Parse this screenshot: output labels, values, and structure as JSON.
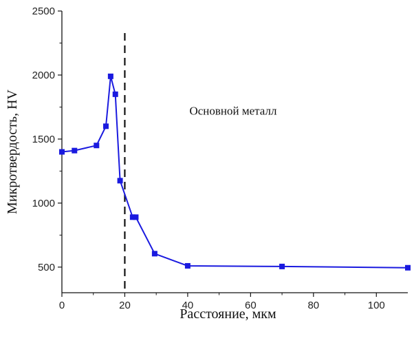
{
  "chart_data": {
    "type": "line",
    "title": "",
    "xlabel": "Расстояние, мкм",
    "ylabel": "Микротвердость, HV",
    "xlim": [
      0,
      110
    ],
    "ylim": [
      300,
      2500
    ],
    "x_ticks": [
      0,
      20,
      40,
      60,
      80,
      100
    ],
    "y_ticks": [
      500,
      1000,
      1500,
      2000,
      2500
    ],
    "grid": false,
    "legend": "none",
    "series": [
      {
        "color": "#1a1adf",
        "marker": "square",
        "x": [
          0,
          4,
          11,
          14,
          15.5,
          17,
          18.5,
          22.5,
          23.5,
          29.5,
          40,
          70,
          110
        ],
        "y": [
          1400,
          1410,
          1450,
          1600,
          1990,
          1850,
          1175,
          890,
          890,
          605,
          510,
          505,
          495
        ]
      }
    ],
    "reference_line": {
      "x": 20,
      "style": "dashed",
      "color": "#111111"
    },
    "annotations": [
      {
        "text": "Основной металл",
        "x": 41,
        "y": 1690
      }
    ]
  }
}
